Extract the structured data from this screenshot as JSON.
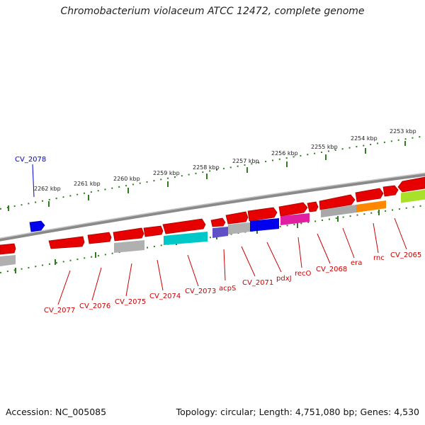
{
  "title": "Chromobacterium violaceum ATCC 12472, complete genome",
  "footer": {
    "accession": "Accession: NC_005085",
    "summary": "Topology: circular; Length: 4,751,080 bp; Genes: 4,530"
  },
  "colors": {
    "forward_gene": "#e60000",
    "reverse_gene": "#e60000",
    "backbone": "#888888",
    "tick": "#2e7d1e",
    "gene_label": "#cc0000",
    "highlight_label": "#0000cc"
  },
  "ticks": [
    "2253 kbp",
    "2254 kbp",
    "2255 kbp",
    "2256 kbp",
    "2257 kbp",
    "2258 kbp",
    "2259 kbp",
    "2260 kbp",
    "2261 kbp",
    "2262 kbp"
  ],
  "genes": [
    "CV_2078",
    "CV_2077",
    "CV_2076",
    "CV_2075",
    "CV_2074",
    "CV_2073",
    "acpS",
    "CV_2071",
    "pdxJ",
    "recO",
    "CV_2068",
    "era",
    "rnc",
    "CV_2065"
  ]
}
